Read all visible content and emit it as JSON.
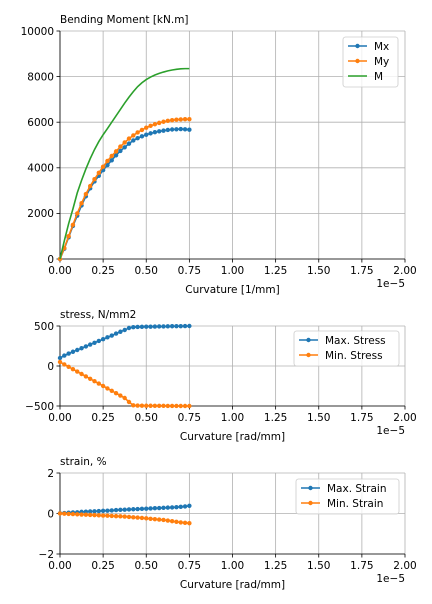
{
  "chart_data": [
    {
      "type": "line",
      "title": "Bending Moment [kN.m]",
      "xlabel": "Curvature [1/mm]",
      "ylabel": "",
      "x_multiplier_label": "1e−5",
      "xlim": [
        0,
        2.0
      ],
      "ylim": [
        0,
        10000
      ],
      "xticks": [
        0,
        0.25,
        0.5,
        0.75,
        1.0,
        1.25,
        1.5,
        1.75,
        2.0
      ],
      "xtick_labels": [
        "0.00",
        "0.25",
        "0.50",
        "0.75",
        "1.00",
        "1.25",
        "1.50",
        "1.75",
        "2.00"
      ],
      "yticks": [
        0,
        2000,
        4000,
        6000,
        8000,
        10000
      ],
      "ytick_labels": [
        "0",
        "2000",
        "4000",
        "6000",
        "8000",
        "10000"
      ],
      "grid": true,
      "legend_position": "top-right",
      "series": [
        {
          "name": "Mx",
          "color": "#1f77b4",
          "markers": true,
          "x": [
            0,
            0.025,
            0.05,
            0.075,
            0.1,
            0.125,
            0.15,
            0.175,
            0.2,
            0.225,
            0.25,
            0.275,
            0.3,
            0.325,
            0.35,
            0.375,
            0.4,
            0.425,
            0.45,
            0.475,
            0.5,
            0.525,
            0.55,
            0.575,
            0.6,
            0.625,
            0.65,
            0.675,
            0.7,
            0.725,
            0.75
          ],
          "y": [
            0,
            450,
            950,
            1450,
            1900,
            2350,
            2750,
            3100,
            3400,
            3650,
            3900,
            4120,
            4330,
            4550,
            4740,
            4900,
            5060,
            5200,
            5300,
            5380,
            5450,
            5510,
            5560,
            5600,
            5630,
            5660,
            5680,
            5690,
            5700,
            5690,
            5670
          ]
        },
        {
          "name": "My",
          "color": "#ff7f0e",
          "markers": true,
          "x": [
            0,
            0.025,
            0.05,
            0.075,
            0.1,
            0.125,
            0.15,
            0.175,
            0.2,
            0.225,
            0.25,
            0.275,
            0.3,
            0.325,
            0.35,
            0.375,
            0.4,
            0.425,
            0.45,
            0.475,
            0.5,
            0.525,
            0.55,
            0.575,
            0.6,
            0.625,
            0.65,
            0.675,
            0.7,
            0.725,
            0.75
          ],
          "y": [
            0,
            480,
            1000,
            1500,
            2000,
            2450,
            2850,
            3200,
            3500,
            3780,
            4050,
            4300,
            4520,
            4720,
            4930,
            5110,
            5280,
            5420,
            5550,
            5660,
            5760,
            5840,
            5910,
            5970,
            6020,
            6060,
            6090,
            6110,
            6120,
            6130,
            6130
          ]
        },
        {
          "name": "M",
          "color": "#2ca02c",
          "markers": false,
          "x": [
            0,
            0.025,
            0.05,
            0.075,
            0.1,
            0.125,
            0.15,
            0.175,
            0.2,
            0.225,
            0.25,
            0.275,
            0.3,
            0.325,
            0.35,
            0.375,
            0.4,
            0.425,
            0.45,
            0.475,
            0.5,
            0.525,
            0.55,
            0.575,
            0.6,
            0.625,
            0.65,
            0.675,
            0.7,
            0.725,
            0.75
          ],
          "y": [
            0,
            800,
            1550,
            2200,
            2900,
            3450,
            3950,
            4400,
            4800,
            5150,
            5450,
            5720,
            6000,
            6280,
            6560,
            6840,
            7100,
            7340,
            7560,
            7730,
            7870,
            7980,
            8070,
            8140,
            8200,
            8250,
            8290,
            8320,
            8340,
            8350,
            8350
          ]
        }
      ]
    },
    {
      "type": "line",
      "title": "stress, N/mm2",
      "xlabel": "Curvature [rad/mm]",
      "ylabel": "",
      "x_multiplier_label": "1e−5",
      "xlim": [
        0,
        2.0
      ],
      "ylim": [
        -500,
        500
      ],
      "xticks": [
        0,
        0.25,
        0.5,
        0.75,
        1.0,
        1.25,
        1.5,
        1.75,
        2.0
      ],
      "xtick_labels": [
        "0.00",
        "0.25",
        "0.50",
        "0.75",
        "1.00",
        "1.25",
        "1.50",
        "1.75",
        "2.00"
      ],
      "yticks": [
        -500,
        0,
        500
      ],
      "ytick_labels": [
        "−500",
        "0",
        "500"
      ],
      "grid": true,
      "legend_position": "top-right",
      "series": [
        {
          "name": "Max. Stress",
          "color": "#1f77b4",
          "markers": true,
          "x": [
            0,
            0.025,
            0.05,
            0.075,
            0.1,
            0.125,
            0.15,
            0.175,
            0.2,
            0.225,
            0.25,
            0.275,
            0.3,
            0.325,
            0.35,
            0.375,
            0.4,
            0.425,
            0.45,
            0.475,
            0.5,
            0.525,
            0.55,
            0.575,
            0.6,
            0.625,
            0.65,
            0.675,
            0.7,
            0.725,
            0.75
          ],
          "y": [
            100,
            130,
            155,
            178,
            200,
            222,
            245,
            268,
            290,
            313,
            335,
            358,
            380,
            405,
            428,
            450,
            475,
            485,
            488,
            490,
            491,
            492,
            493,
            494,
            495,
            496,
            497,
            498,
            498,
            499,
            500
          ]
        },
        {
          "name": "Min. Stress",
          "color": "#ff7f0e",
          "markers": true,
          "x": [
            0,
            0.025,
            0.05,
            0.075,
            0.1,
            0.125,
            0.15,
            0.175,
            0.2,
            0.225,
            0.25,
            0.275,
            0.3,
            0.325,
            0.35,
            0.375,
            0.4,
            0.425,
            0.45,
            0.475,
            0.5,
            0.525,
            0.55,
            0.575,
            0.6,
            0.625,
            0.65,
            0.675,
            0.7,
            0.725,
            0.75
          ],
          "y": [
            50,
            20,
            -10,
            -40,
            -70,
            -100,
            -130,
            -160,
            -190,
            -220,
            -250,
            -280,
            -310,
            -340,
            -370,
            -400,
            -450,
            -492,
            -495,
            -496,
            -497,
            -497,
            -498,
            -498,
            -498,
            -499,
            -499,
            -499,
            -500,
            -500,
            -500
          ]
        }
      ]
    },
    {
      "type": "line",
      "title": "strain, %",
      "xlabel": "Curvature [rad/mm]",
      "ylabel": "",
      "x_multiplier_label": "1e−5",
      "xlim": [
        0,
        2.0
      ],
      "ylim": [
        -2,
        2
      ],
      "xticks": [
        0,
        0.25,
        0.5,
        0.75,
        1.0,
        1.25,
        1.5,
        1.75,
        2.0
      ],
      "xtick_labels": [
        "0.00",
        "0.25",
        "0.50",
        "0.75",
        "1.00",
        "1.25",
        "1.50",
        "1.75",
        "2.00"
      ],
      "yticks": [
        -2,
        0,
        2
      ],
      "ytick_labels": [
        "−2",
        "0",
        "2"
      ],
      "grid": true,
      "legend_position": "top-right",
      "series": [
        {
          "name": "Max. Strain",
          "color": "#1f77b4",
          "markers": true,
          "x": [
            0,
            0.025,
            0.05,
            0.075,
            0.1,
            0.125,
            0.15,
            0.175,
            0.2,
            0.225,
            0.25,
            0.275,
            0.3,
            0.325,
            0.35,
            0.375,
            0.4,
            0.425,
            0.45,
            0.475,
            0.5,
            0.525,
            0.55,
            0.575,
            0.6,
            0.625,
            0.65,
            0.675,
            0.7,
            0.725,
            0.75
          ],
          "y": [
            0.01,
            0.02,
            0.04,
            0.05,
            0.06,
            0.08,
            0.09,
            0.1,
            0.11,
            0.12,
            0.13,
            0.14,
            0.15,
            0.17,
            0.18,
            0.19,
            0.2,
            0.21,
            0.22,
            0.23,
            0.24,
            0.25,
            0.26,
            0.27,
            0.28,
            0.29,
            0.3,
            0.31,
            0.33,
            0.35,
            0.38
          ]
        },
        {
          "name": "Min. Strain",
          "color": "#ff7f0e",
          "markers": true,
          "x": [
            0,
            0.025,
            0.05,
            0.075,
            0.1,
            0.125,
            0.15,
            0.175,
            0.2,
            0.225,
            0.25,
            0.275,
            0.3,
            0.325,
            0.35,
            0.375,
            0.4,
            0.425,
            0.45,
            0.475,
            0.5,
            0.525,
            0.55,
            0.575,
            0.6,
            0.625,
            0.65,
            0.675,
            0.7,
            0.725,
            0.75
          ],
          "y": [
            0,
            -0.01,
            -0.02,
            -0.03,
            -0.04,
            -0.05,
            -0.06,
            -0.07,
            -0.08,
            -0.09,
            -0.1,
            -0.11,
            -0.12,
            -0.13,
            -0.14,
            -0.15,
            -0.17,
            -0.19,
            -0.2,
            -0.22,
            -0.24,
            -0.26,
            -0.28,
            -0.3,
            -0.32,
            -0.35,
            -0.38,
            -0.41,
            -0.44,
            -0.46,
            -0.48
          ]
        }
      ]
    }
  ]
}
